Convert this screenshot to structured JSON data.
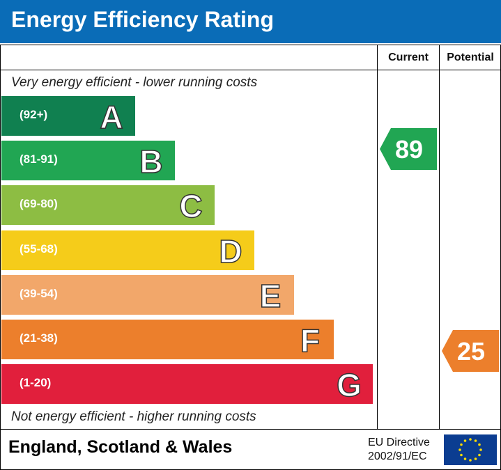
{
  "header": {
    "title": "Energy Efficiency Rating",
    "color": "#0a6cb7"
  },
  "columns": {
    "current": "Current",
    "potential": "Potential"
  },
  "notes": {
    "top": "Very energy efficient - lower running costs",
    "bottom": "Not energy efficient - higher running costs"
  },
  "bands": [
    {
      "range": "(92+)",
      "letter": "A",
      "color": "#108050"
    },
    {
      "range": "(81-91)",
      "letter": "B",
      "color": "#21a653"
    },
    {
      "range": "(69-80)",
      "letter": "C",
      "color": "#8dbd43"
    },
    {
      "range": "(55-68)",
      "letter": "D",
      "color": "#f5cc1a"
    },
    {
      "range": "(39-54)",
      "letter": "E",
      "color": "#f2a76a"
    },
    {
      "range": "(21-38)",
      "letter": "F",
      "color": "#ec7f2c"
    },
    {
      "range": "(1-20)",
      "letter": "G",
      "color": "#e11f3c"
    }
  ],
  "current": {
    "value": "89",
    "band": "B",
    "color": "#21a653"
  },
  "potential": {
    "value": "25",
    "band": "F",
    "color": "#ec7f2c"
  },
  "footer": {
    "region": "England, Scotland & Wales",
    "directive_line1": "EU Directive",
    "directive_line2": "2002/91/EC",
    "flag_icon": "eu-flag-icon"
  }
}
